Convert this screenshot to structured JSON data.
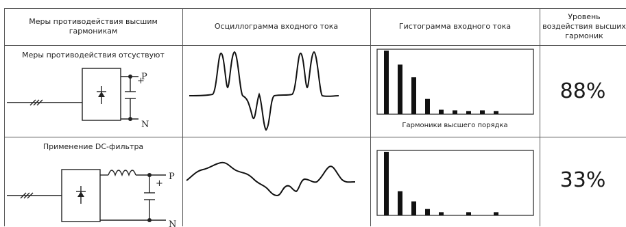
{
  "table": {
    "headers": [
      "Меры противодействия высшим гармоникам",
      "Осциллограмма входного тока",
      "Гистограмма входного тока",
      "Уровень воздействия высших гармоник"
    ],
    "rows": [
      {
        "measure": "Меры противодействия отсуствуют",
        "level": "88%",
        "histogram_caption": "Гармоники высшего порядка",
        "terminal_p": "P",
        "terminal_n": "N",
        "plus": "+",
        "histogram_values": [
          1.0,
          0.78,
          0.58,
          0.24,
          0.07,
          0.06,
          0.05,
          0.06,
          0.05
        ]
      },
      {
        "measure": "Применение DC-фильтра",
        "level": "33%",
        "histogram_caption": "",
        "terminal_p": "P",
        "terminal_n": "N",
        "plus": "+",
        "histogram_values": [
          1.0,
          0.38,
          0.22,
          0.1,
          0.05,
          0.0,
          0.05,
          0.0,
          0.05
        ]
      }
    ]
  },
  "colors": {
    "line": "#555555",
    "ink": "#111111"
  }
}
